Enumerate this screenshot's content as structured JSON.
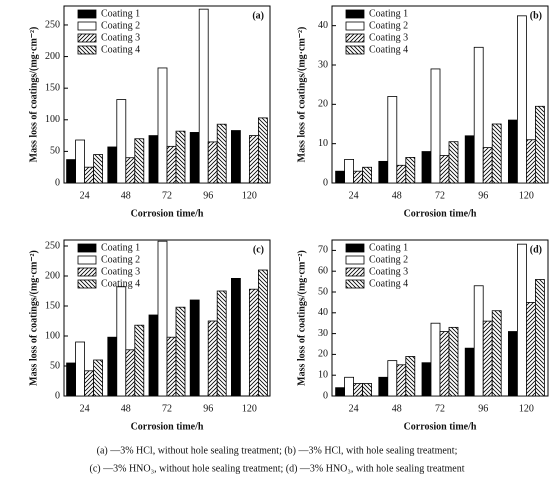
{
  "chart_data": [
    {
      "type": "bar",
      "panel_label": "(a)",
      "xlabel": "Corrosion time/h",
      "ylabel": "Mass loss of coatings/(mg·cm⁻²)",
      "categories": [
        "24",
        "48",
        "72",
        "96",
        "120"
      ],
      "series": [
        {
          "name": "Coating 1",
          "color": "#000000",
          "hatch": null,
          "values": [
            37,
            57,
            75,
            80,
            83
          ]
        },
        {
          "name": "Coating 2",
          "color": "#ffffff",
          "hatch": null,
          "values": [
            68,
            132,
            182,
            275,
            null
          ]
        },
        {
          "name": "Coating 3",
          "color": "#ffffff",
          "hatch": "/",
          "values": [
            25,
            40,
            58,
            65,
            75
          ]
        },
        {
          "name": "Coating 4",
          "color": "#ffffff",
          "hatch": "\\",
          "values": [
            45,
            70,
            82,
            93,
            103
          ]
        }
      ],
      "ylim": [
        0,
        280
      ],
      "yticks": [
        0,
        50,
        100,
        150,
        200,
        250
      ],
      "legend": "upper left"
    },
    {
      "type": "bar",
      "panel_label": "(b)",
      "xlabel": "Corrosion time/h",
      "ylabel": "Mass loss of coatings/(mg·cm⁻²)",
      "categories": [
        "24",
        "48",
        "72",
        "96",
        "120"
      ],
      "series": [
        {
          "name": "Coating 1",
          "color": "#000000",
          "hatch": null,
          "values": [
            3,
            5.5,
            8,
            12,
            16
          ]
        },
        {
          "name": "Coating 2",
          "color": "#ffffff",
          "hatch": null,
          "values": [
            6,
            22,
            29,
            34.5,
            42.5
          ]
        },
        {
          "name": "Coating 3",
          "color": "#ffffff",
          "hatch": "/",
          "values": [
            3,
            4.5,
            7,
            9,
            11
          ]
        },
        {
          "name": "Coating 4",
          "color": "#ffffff",
          "hatch": "\\",
          "values": [
            4,
            6.5,
            10.5,
            15,
            19.5
          ]
        }
      ],
      "ylim": [
        0,
        45
      ],
      "yticks": [
        0,
        10,
        20,
        30,
        40
      ],
      "legend": "upper left"
    },
    {
      "type": "bar",
      "panel_label": "(c)",
      "xlabel": "Corrosion time/h",
      "ylabel": "Mass loss of coatings/(mg·cm⁻²)",
      "categories": [
        "24",
        "48",
        "72",
        "96",
        "120"
      ],
      "series": [
        {
          "name": "Coating 1",
          "color": "#000000",
          "hatch": null,
          "values": [
            55,
            98,
            135,
            160,
            196
          ]
        },
        {
          "name": "Coating 2",
          "color": "#ffffff",
          "hatch": null,
          "values": [
            90,
            182,
            258,
            null,
            null
          ]
        },
        {
          "name": "Coating 3",
          "color": "#ffffff",
          "hatch": "/",
          "values": [
            42,
            77,
            98,
            125,
            178
          ]
        },
        {
          "name": "Coating 4",
          "color": "#ffffff",
          "hatch": "\\",
          "values": [
            60,
            118,
            148,
            175,
            210
          ]
        }
      ],
      "ylim": [
        0,
        260
      ],
      "yticks": [
        0,
        50,
        100,
        150,
        200,
        250
      ],
      "legend": "upper left"
    },
    {
      "type": "bar",
      "panel_label": "(d)",
      "xlabel": "Corrosion time/h",
      "ylabel": "Mass loss of coatings/(mg·cm⁻²)",
      "categories": [
        "24",
        "48",
        "72",
        "96",
        "120"
      ],
      "series": [
        {
          "name": "Coating 1",
          "color": "#000000",
          "hatch": null,
          "values": [
            4,
            9,
            16,
            23,
            31
          ]
        },
        {
          "name": "Coating 2",
          "color": "#ffffff",
          "hatch": null,
          "values": [
            9,
            17,
            35,
            53,
            73
          ]
        },
        {
          "name": "Coating 3",
          "color": "#ffffff",
          "hatch": "/",
          "values": [
            6,
            15,
            31,
            36,
            45
          ]
        },
        {
          "name": "Coating 4",
          "color": "#ffffff",
          "hatch": "\\",
          "values": [
            6,
            19,
            33,
            41,
            56
          ]
        }
      ],
      "ylim": [
        0,
        75
      ],
      "yticks": [
        0,
        10,
        20,
        30,
        40,
        50,
        60,
        70
      ],
      "legend": "upper left"
    }
  ],
  "caption": [
    "(a) —3% HCl, without hole sealing treatment; (b) —3% HCl, with hole sealing treatment;",
    "(c) —3% HNO₃, without hole sealing treatment; (d) —3% HNO₃, with hole sealing treatment"
  ]
}
